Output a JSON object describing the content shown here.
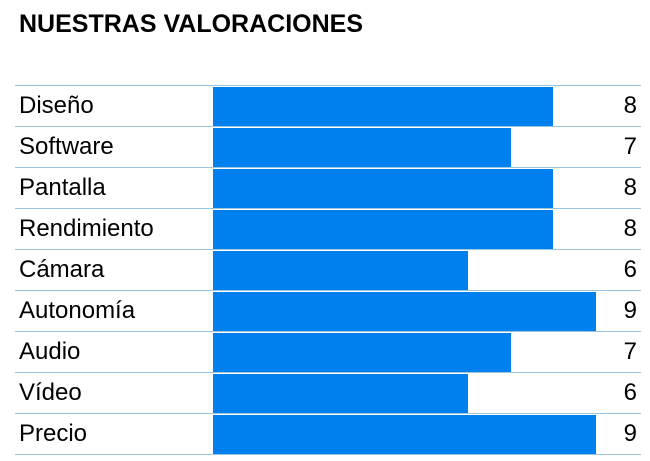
{
  "title": "NUESTRAS VALORACIONES",
  "colors": {
    "bar": "#0080ee",
    "divider": "#9cc6df"
  },
  "chart_data": {
    "type": "bar",
    "orientation": "horizontal",
    "title": "NUESTRAS VALORACIONES",
    "categories": [
      "Diseño",
      "Software",
      "Pantalla",
      "Rendimiento",
      "Cámara",
      "Autonomía",
      "Audio",
      "Vídeo",
      "Precio"
    ],
    "values": [
      8,
      7,
      8,
      8,
      6,
      9,
      7,
      6,
      9
    ],
    "xlim": [
      0,
      9
    ],
    "grid": false,
    "legend": "none"
  }
}
